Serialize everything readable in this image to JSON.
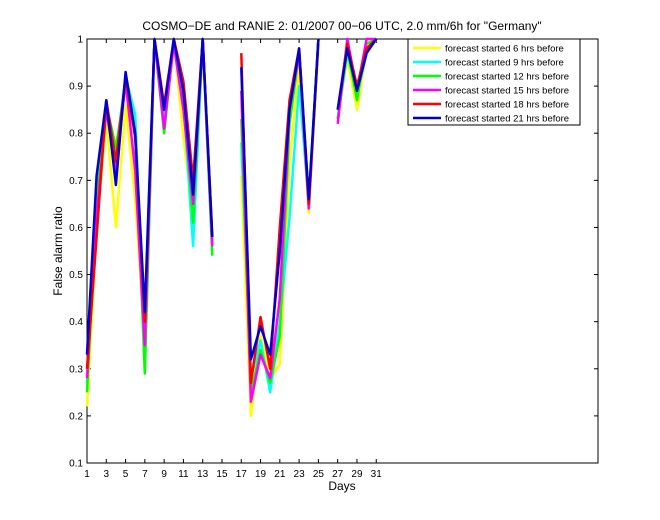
{
  "chart_data": {
    "type": "line",
    "title": "COSMO−DE and RANIE 2: 01/2007 00−06 UTC, 2.0 mm/6h for \"Germany\"",
    "xlabel": "Days",
    "ylabel": "False alarm ratio",
    "xlim": [
      1,
      54
    ],
    "ylim": [
      0.1,
      1
    ],
    "xticks": [
      1,
      3,
      5,
      7,
      9,
      11,
      13,
      15,
      17,
      19,
      21,
      23,
      25,
      27,
      29,
      31
    ],
    "yticks": [
      0.1,
      0.2,
      0.3,
      0.4,
      0.5,
      0.6,
      0.7,
      0.8,
      0.9,
      1
    ],
    "grid": false,
    "legend_position": "top-right",
    "x": [
      1,
      2,
      3,
      4,
      5,
      6,
      7,
      8,
      9,
      10,
      11,
      12,
      13,
      14,
      15,
      16,
      17,
      18,
      19,
      20,
      21,
      22,
      23,
      24,
      25,
      26,
      27,
      28,
      29,
      30,
      31
    ],
    "series": [
      {
        "name": "forecast started 6 hrs before",
        "color": "#ffff00",
        "values": [
          0.22,
          0.6,
          0.83,
          0.6,
          0.86,
          0.66,
          0.36,
          1.0,
          0.82,
          1.0,
          0.79,
          0.63,
          0.98,
          0.56,
          null,
          null,
          0.71,
          0.2,
          0.37,
          0.28,
          0.31,
          0.74,
          0.94,
          0.63,
          0.98,
          null,
          0.83,
          0.96,
          0.85,
          0.98,
          1.0
        ]
      },
      {
        "name": "forecast started 9 hrs before",
        "color": "#00ffff",
        "values": [
          0.27,
          0.65,
          0.86,
          0.76,
          0.92,
          0.84,
          0.33,
          1.0,
          0.84,
          1.0,
          0.87,
          0.56,
          1.0,
          0.57,
          null,
          null,
          0.78,
          0.28,
          0.36,
          0.25,
          0.4,
          0.62,
          0.9,
          0.65,
          0.99,
          null,
          0.83,
          0.97,
          0.88,
          0.97,
          1.0
        ]
      },
      {
        "name": "forecast started 12 hrs before",
        "color": "#00ff00",
        "values": [
          0.25,
          0.66,
          0.86,
          0.77,
          0.9,
          0.8,
          0.29,
          1.0,
          0.8,
          1.0,
          0.88,
          0.61,
          1.0,
          0.54,
          null,
          null,
          0.83,
          0.25,
          0.34,
          0.27,
          0.37,
          0.82,
          0.97,
          0.66,
          1.0,
          null,
          0.83,
          0.98,
          0.87,
          0.99,
          1.0
        ]
      },
      {
        "name": "forecast started 15 hrs before",
        "color": "#ff00ff",
        "values": [
          0.28,
          0.62,
          0.85,
          0.72,
          0.91,
          0.72,
          0.35,
          1.0,
          0.81,
          0.99,
          0.85,
          0.65,
          1.0,
          0.56,
          null,
          null,
          0.89,
          0.23,
          0.33,
          0.28,
          0.45,
          0.85,
          0.97,
          0.64,
          1.0,
          null,
          0.82,
          1.0,
          0.89,
          1.0,
          1.0
        ]
      },
      {
        "name": "forecast started 18 hrs before",
        "color": "#ff0000",
        "values": [
          0.3,
          0.58,
          0.87,
          0.74,
          0.92,
          0.79,
          0.4,
          1.0,
          0.86,
          1.0,
          0.91,
          0.7,
          1.0,
          0.58,
          null,
          null,
          0.97,
          0.27,
          0.41,
          0.3,
          0.6,
          0.87,
          0.98,
          0.65,
          1.0,
          null,
          0.85,
          0.99,
          0.9,
          0.98,
          1.0
        ]
      },
      {
        "name": "forecast started 21 hrs before",
        "color": "#0000cc",
        "values": [
          0.33,
          0.71,
          0.87,
          0.69,
          0.93,
          0.8,
          0.42,
          1.0,
          0.85,
          1.0,
          0.89,
          0.67,
          1.0,
          0.58,
          null,
          null,
          0.94,
          0.32,
          0.39,
          0.33,
          0.55,
          0.85,
          0.98,
          0.66,
          1.0,
          null,
          0.85,
          0.98,
          0.89,
          0.97,
          1.0
        ]
      }
    ]
  }
}
